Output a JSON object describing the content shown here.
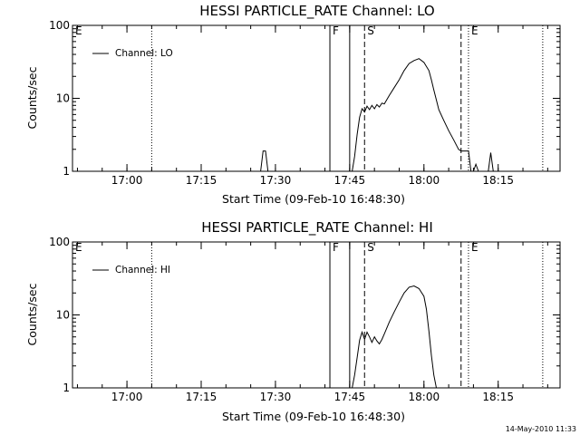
{
  "footer_date": "14-May-2010 11:33",
  "chart_data": [
    {
      "type": "line",
      "title": "HESSI PARTICLE_RATE Channel: LO",
      "xlabel": "Start Time (09-Feb-10 16:48:30)",
      "ylabel": "Counts/sec",
      "yscale": "log",
      "ylim": [
        1,
        100
      ],
      "xlim": [
        "16:49:00",
        "18:27:30"
      ],
      "xticks": [
        "17:00",
        "17:15",
        "17:30",
        "17:45",
        "18:00",
        "18:15"
      ],
      "yticks": [
        "1",
        "10",
        "100"
      ],
      "legend": {
        "label": "Channel: LO",
        "position": "top-left"
      },
      "markers": [
        {
          "label": "E",
          "time": "16:49:00",
          "style": "none"
        },
        {
          "label": "",
          "time": "17:05:00",
          "style": "dotted"
        },
        {
          "label": "F",
          "time": "17:41:00",
          "style": "solid"
        },
        {
          "label": "",
          "time": "17:45:00",
          "style": "solid"
        },
        {
          "label": "S",
          "time": "17:48:00",
          "style": "dashed"
        },
        {
          "label": "",
          "time": "18:07:30",
          "style": "dashed"
        },
        {
          "label": "E",
          "time": "18:09:00",
          "style": "dotted"
        },
        {
          "label": "",
          "time": "18:24:00",
          "style": "dotted"
        }
      ],
      "series": [
        {
          "segments": [
            {
              "x": [
                "17:27:00",
                "17:27:30",
                "17:28:00",
                "17:28:30"
              ],
              "y": [
                1,
                1.9,
                1.9,
                1
              ]
            },
            {
              "x": [
                "17:45:30",
                "17:46:00",
                "17:46:30",
                "17:47:00",
                "17:47:30",
                "17:48:00",
                "17:48:30",
                "17:49:00",
                "17:49:30",
                "17:50:00",
                "17:50:30",
                "17:51:00",
                "17:51:30",
                "17:52:00",
                "17:53:00",
                "17:54:00",
                "17:55:00",
                "17:56:00",
                "17:57:00",
                "17:58:00",
                "17:59:00",
                "18:00:00",
                "18:01:00",
                "18:01:30",
                "18:02:00",
                "18:02:30",
                "18:03:00",
                "18:04:00",
                "18:05:00",
                "18:06:00",
                "18:07:00",
                "18:07:30",
                "18:08:00",
                "18:09:00",
                "18:09:30"
              ],
              "y": [
                1,
                1.6,
                3.2,
                5.5,
                7.2,
                6.5,
                7.8,
                7.0,
                8.0,
                7.2,
                8.2,
                7.6,
                8.6,
                8.4,
                11,
                14,
                18,
                24,
                30,
                33,
                35,
                31,
                24,
                18,
                13,
                9.5,
                7,
                5,
                3.6,
                2.7,
                2.0,
                1.9,
                1.9,
                1.9,
                1
              ]
            },
            {
              "x": [
                "18:10:00",
                "18:10:30",
                "18:11:00"
              ],
              "y": [
                1,
                1.25,
                1
              ]
            },
            {
              "x": [
                "18:13:00",
                "18:13:30",
                "18:14:00"
              ],
              "y": [
                1,
                1.8,
                1
              ]
            }
          ]
        }
      ]
    },
    {
      "type": "line",
      "title": "HESSI PARTICLE_RATE Channel: HI",
      "xlabel": "Start Time (09-Feb-10 16:48:30)",
      "ylabel": "Counts/sec",
      "yscale": "log",
      "ylim": [
        1,
        100
      ],
      "xlim": [
        "16:49:00",
        "18:27:30"
      ],
      "xticks": [
        "17:00",
        "17:15",
        "17:30",
        "17:45",
        "18:00",
        "18:15"
      ],
      "yticks": [
        "1",
        "10",
        "100"
      ],
      "legend": {
        "label": "Channel: HI",
        "position": "top-left"
      },
      "markers": [
        {
          "label": "E",
          "time": "16:49:00",
          "style": "none"
        },
        {
          "label": "",
          "time": "17:05:00",
          "style": "dotted"
        },
        {
          "label": "F",
          "time": "17:41:00",
          "style": "solid"
        },
        {
          "label": "",
          "time": "17:45:00",
          "style": "solid"
        },
        {
          "label": "S",
          "time": "17:48:00",
          "style": "dashed"
        },
        {
          "label": "",
          "time": "18:07:30",
          "style": "dashed"
        },
        {
          "label": "E",
          "time": "18:09:00",
          "style": "dotted"
        },
        {
          "label": "",
          "time": "18:24:00",
          "style": "dotted"
        }
      ],
      "series": [
        {
          "segments": [
            {
              "x": [
                "17:45:30",
                "17:46:00",
                "17:46:30",
                "17:47:00",
                "17:47:30",
                "17:48:00",
                "17:48:30",
                "17:49:00",
                "17:49:30",
                "17:50:00",
                "17:50:30",
                "17:51:00",
                "17:51:30",
                "17:52:00",
                "17:53:00",
                "17:54:00",
                "17:55:00",
                "17:56:00",
                "17:57:00",
                "17:58:00",
                "17:59:00",
                "18:00:00",
                "18:00:30",
                "18:01:00",
                "18:01:30",
                "18:02:00",
                "18:02:30"
              ],
              "y": [
                1,
                1.5,
                2.6,
                4.5,
                5.8,
                4.6,
                5.8,
                5.0,
                4.2,
                5.0,
                4.4,
                4.0,
                4.6,
                5.5,
                8,
                11,
                15,
                20,
                24,
                25,
                23,
                18,
                12,
                6,
                2.8,
                1.5,
                1
              ]
            }
          ]
        }
      ]
    }
  ]
}
